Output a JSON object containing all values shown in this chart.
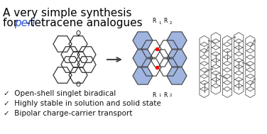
{
  "title_line1": "A very simple synthesis",
  "title_line2_normal1": "for ",
  "title_line2_italic": "peri",
  "title_line2_normal2": "-tetracene analogues",
  "bullet1": "Open-shell singlet biradical",
  "bullet2": "Highly stable in solution and solid state",
  "bullet3": "Bipolar charge-carrier transport",
  "blue_color": "#7b96d4",
  "blue_fill": "#a0b4e0",
  "title_color": "#000000",
  "italic_color": "#3355cc",
  "bg_color": "#ffffff",
  "font_size_title": 11,
  "font_size_bullet": 7.5,
  "font_size_small": 7
}
